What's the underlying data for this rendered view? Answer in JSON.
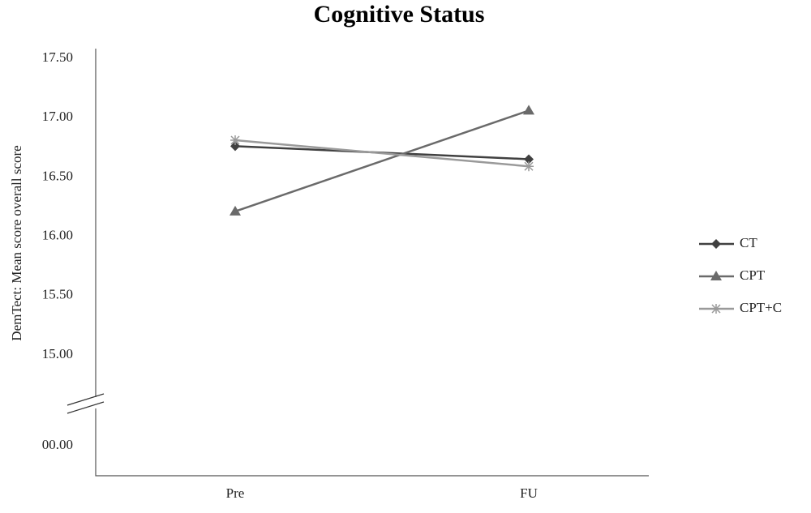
{
  "chart_data": {
    "type": "line",
    "title": "Cognitive Status",
    "y_label": "DemTect: Mean score overall score",
    "categories": [
      "Pre",
      "FU"
    ],
    "series": [
      {
        "name": "CT",
        "color": "#404040",
        "marker": "diamond",
        "values": [
          16.76,
          16.65
        ]
      },
      {
        "name": "CPT",
        "color": "#6a6a6a",
        "marker": "triangle",
        "values": [
          16.21,
          17.06
        ]
      },
      {
        "name": "CPT+C",
        "color": "#9a9a9a",
        "marker": "star",
        "values": [
          16.81,
          16.59
        ]
      }
    ],
    "ylim": [
      0,
      17.5
    ],
    "yticks": [
      {
        "value": 17.5,
        "label": "17.50"
      },
      {
        "value": 17,
        "label": "17.00"
      },
      {
        "value": 16.5,
        "label": "16.50"
      },
      {
        "value": 16,
        "label": "16.00"
      },
      {
        "value": 15.5,
        "label": "15.50"
      },
      {
        "value": 15,
        "label": "15.00"
      },
      {
        "value": 0,
        "label": "00.00"
      }
    ],
    "axis_break": true,
    "grid": false,
    "legend": "right"
  }
}
